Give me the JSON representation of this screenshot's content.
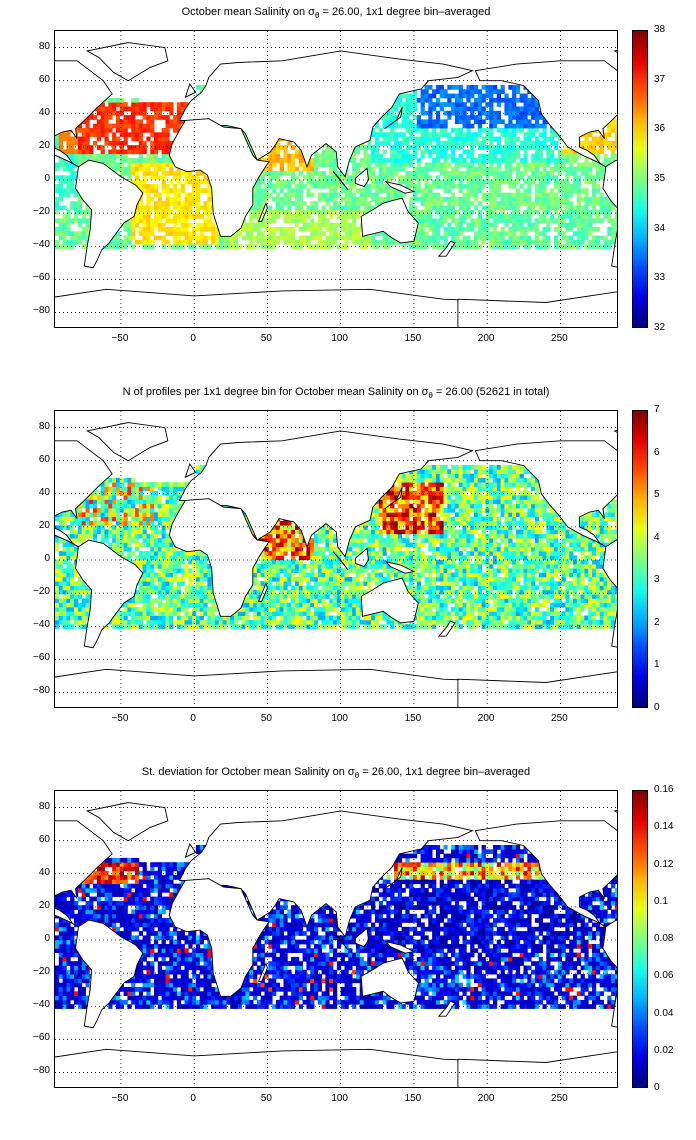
{
  "panels": [
    {
      "title": "October mean Salinity on σ",
      "title_sub": "θ",
      "title_rest": " = 26.00, 1x1 degree bin–averaged",
      "colorbar_ticks": [
        "38",
        "37",
        "36",
        "35",
        "34",
        "33",
        "32"
      ],
      "xticks": [
        "−50",
        "0",
        "50",
        "100",
        "150",
        "200",
        "250"
      ],
      "yticks": [
        "80",
        "60",
        "40",
        "20",
        "0",
        "−20",
        "−40",
        "−60",
        "−80"
      ]
    },
    {
      "title": "N of profiles per 1x1 degree bin for October mean Salinity on σ",
      "title_sub": "θ",
      "title_rest": " = 26.00 (52621 in total)",
      "colorbar_ticks": [
        "7",
        "6",
        "5",
        "4",
        "3",
        "2",
        "1",
        "0"
      ],
      "xticks": [
        "−50",
        "0",
        "50",
        "100",
        "150",
        "200",
        "250"
      ],
      "yticks": [
        "80",
        "60",
        "40",
        "20",
        "0",
        "−20",
        "−40",
        "−60",
        "−80"
      ]
    },
    {
      "title": "St. deviation for October mean Salinity on σ",
      "title_sub": "θ",
      "title_rest": " = 26.00, 1x1 degree bin–averaged",
      "colorbar_ticks": [
        "0.16",
        "0.14",
        "0.12",
        "0.1",
        "0.08",
        "0.06",
        "0.04",
        "0.02",
        "0"
      ],
      "xticks": [
        "−50",
        "0",
        "50",
        "100",
        "150",
        "200",
        "250"
      ],
      "yticks": [
        "80",
        "60",
        "40",
        "20",
        "0",
        "−20",
        "−40",
        "−60",
        "−80"
      ]
    }
  ],
  "chart_data": [
    {
      "type": "heatmap",
      "title": "October mean Salinity on σθ = 26.00, 1x1 degree bin–averaged",
      "xlim": [
        -95,
        290
      ],
      "ylim": [
        -90,
        90
      ],
      "colorbar_range": [
        32,
        38
      ],
      "grid": true,
      "colormap": "jet"
    },
    {
      "type": "heatmap",
      "title": "N of profiles per 1x1 degree bin for October mean Salinity on σθ = 26.00 (52621 in total)",
      "xlim": [
        -95,
        290
      ],
      "ylim": [
        -90,
        90
      ],
      "colorbar_range": [
        0,
        7
      ],
      "total_profiles": 52621,
      "grid": true,
      "colormap": "jet"
    },
    {
      "type": "heatmap",
      "title": "St. deviation for October mean Salinity on σθ = 26.00, 1x1 degree bin–averaged",
      "xlim": [
        -95,
        290
      ],
      "ylim": [
        -90,
        90
      ],
      "colorbar_range": [
        0,
        0.16
      ],
      "grid": true,
      "colormap": "jet"
    }
  ]
}
